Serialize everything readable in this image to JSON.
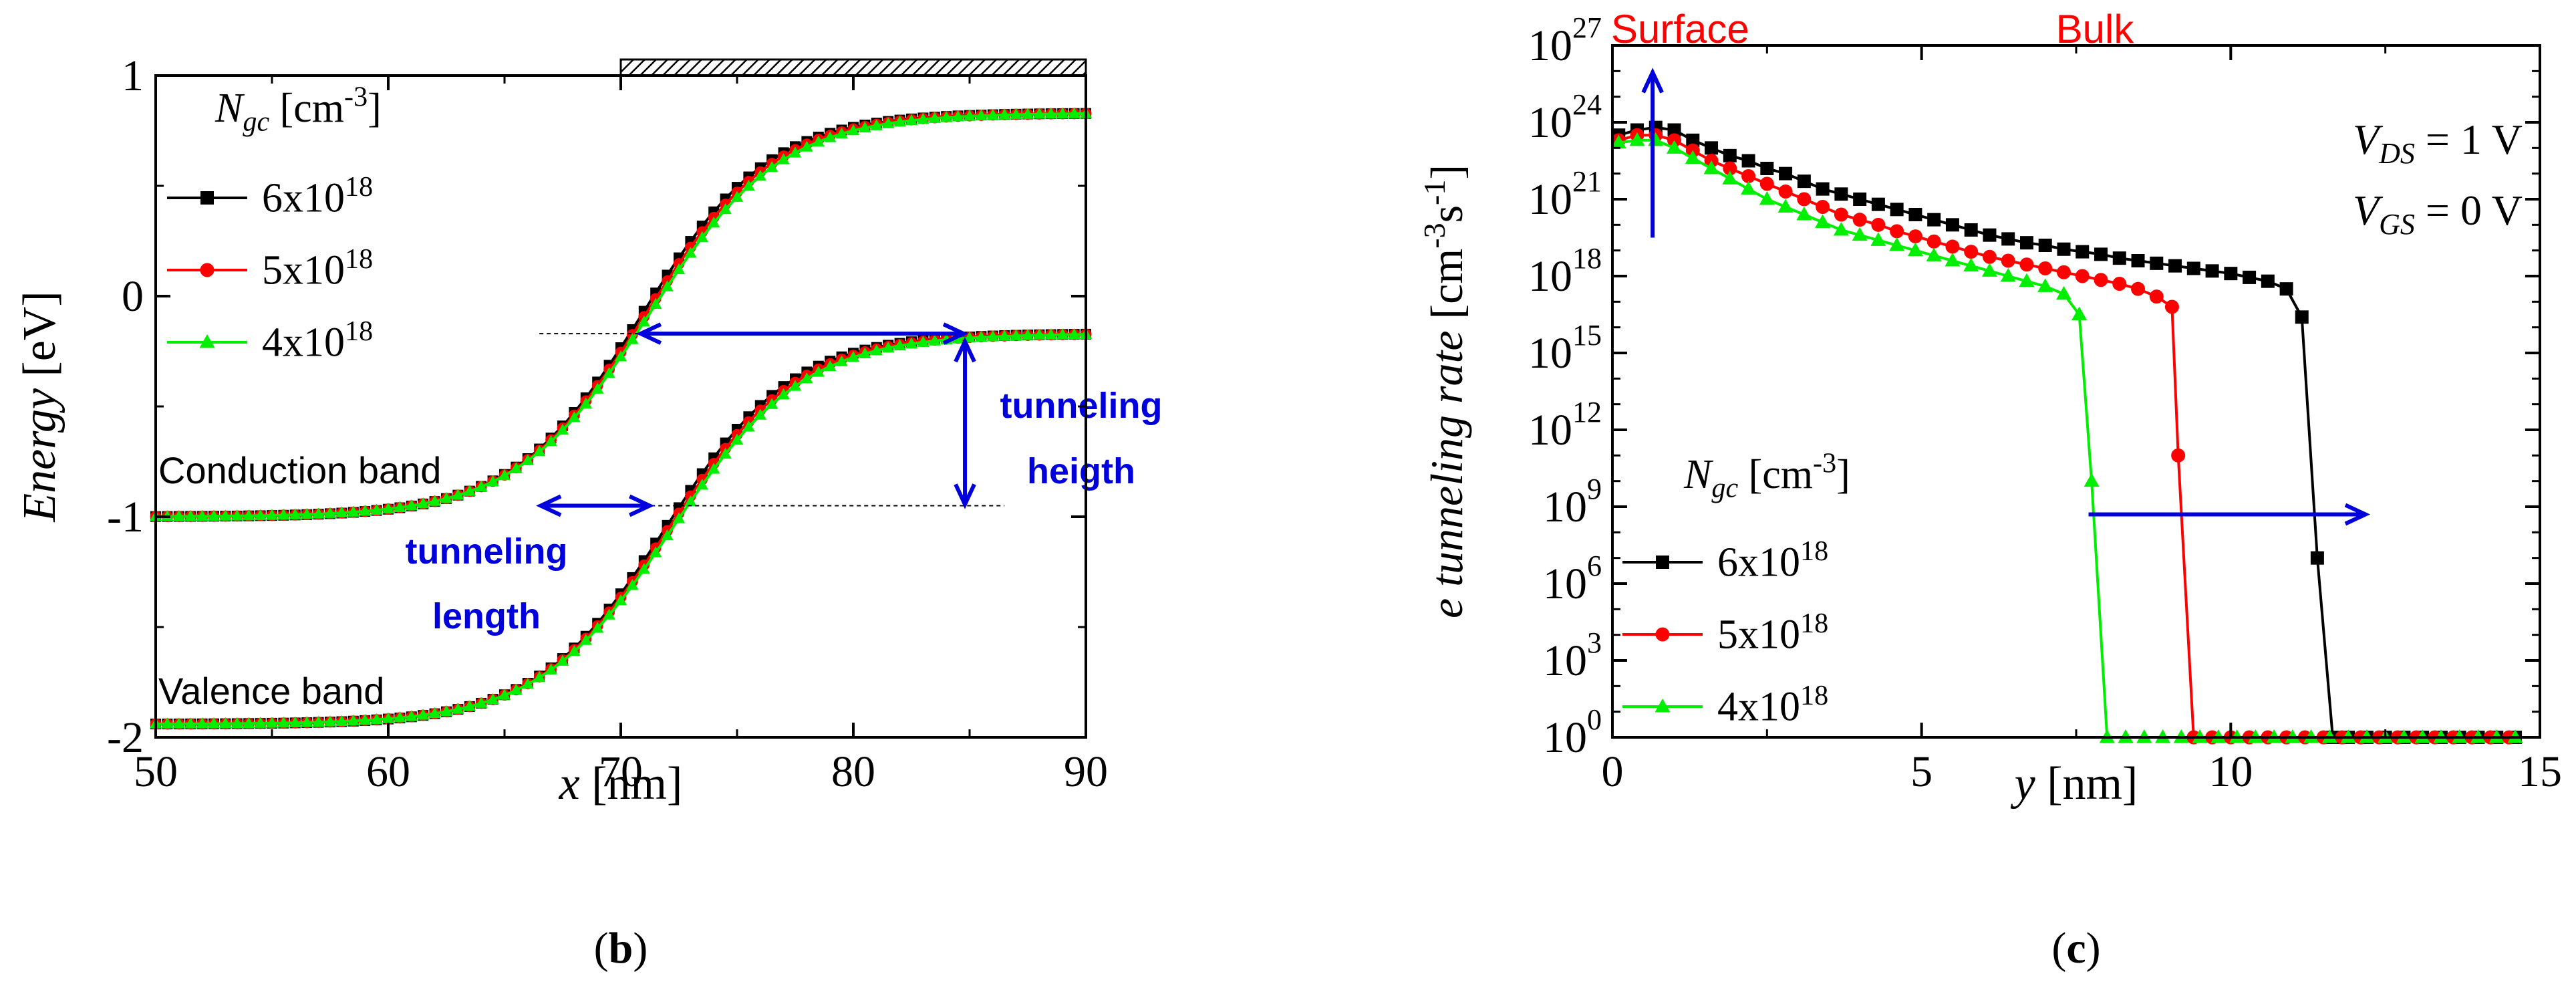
{
  "chart_data": [
    {
      "panel_label": "b",
      "type": "line",
      "title": "",
      "xlabel": {
        "var": "x",
        "unit": " [nm]"
      },
      "ylabel": {
        "var": "Energy",
        "unit": " [eV]"
      },
      "xlim": [
        50,
        90
      ],
      "ylim": [
        -2,
        1
      ],
      "x_ticks": [
        "50",
        "60",
        "70",
        "80",
        "90"
      ],
      "y_ticks": [
        "-2",
        "-1",
        "0",
        "1"
      ],
      "legend": {
        "position": "top-left",
        "title": {
          "main": "N",
          "sub": "gc",
          "unit": " [cm",
          "sup": "-3",
          "close": "]"
        },
        "entries": [
          {
            "base": "6x10",
            "exp": "18",
            "color": "#000000",
            "marker": "square"
          },
          {
            "base": "5x10",
            "exp": "18",
            "color": "#ff0000",
            "marker": "circle"
          },
          {
            "base": "4x10",
            "exp": "18",
            "color": "#00ee00",
            "marker": "triangle"
          }
        ]
      },
      "gate_bar_range": [
        70,
        90
      ],
      "series": [
        {
          "name": "6x10^18",
          "band": "Conduction band",
          "color": "#000000",
          "marker": "square",
          "low": -1.0,
          "high": 0.83,
          "center": 70.9,
          "width": 2.75
        },
        {
          "name": "5x10^18",
          "band": "Conduction band",
          "color": "#ff0000",
          "marker": "circle",
          "low": -1.0,
          "high": 0.83,
          "center": 71.05,
          "width": 2.8
        },
        {
          "name": "4x10^18",
          "band": "Conduction band",
          "color": "#00ee00",
          "marker": "triangle",
          "low": -1.0,
          "high": 0.83,
          "center": 71.2,
          "width": 2.85
        },
        {
          "name": "6x10^18",
          "band": "Valence band",
          "color": "#000000",
          "marker": "square",
          "low": -1.94,
          "high": -0.17,
          "center": 71.9,
          "width": 2.75
        },
        {
          "name": "5x10^18",
          "band": "Valence band",
          "color": "#ff0000",
          "marker": "circle",
          "low": -1.94,
          "high": -0.17,
          "center": 72.05,
          "width": 2.8
        },
        {
          "name": "4x10^18",
          "band": "Valence band",
          "color": "#00ee00",
          "marker": "triangle",
          "low": -1.94,
          "high": -0.17,
          "center": 72.2,
          "width": 2.85
        }
      ],
      "annotations": {
        "conduction_band": "Conduction band",
        "valence_band": "Valence band",
        "tunneling_length": [
          "tunneling",
          "length"
        ],
        "tunneling_height": [
          "tunneling",
          "heigth"
        ],
        "horizontal_arrow_energy": -0.17,
        "horizontal_arrow_x": [
          70.8,
          84.8
        ],
        "length_arrow_energy": -0.95,
        "length_arrow_x": [
          66.5,
          71.3
        ],
        "height_arrow_x": 84.8,
        "height_arrow_energy": [
          -0.2,
          -0.95
        ],
        "dashed_upper": {
          "x": [
            66.5,
            70.8
          ],
          "y": -0.17
        },
        "dashed_lower": {
          "x": [
            71.3,
            86.5
          ],
          "y": -0.95
        },
        "annotation_color": "#0000dd"
      }
    },
    {
      "panel_label": "c",
      "type": "line",
      "title": "",
      "xlabel": {
        "var": "y",
        "unit": " [nm]"
      },
      "ylabel": {
        "var": "e tunneling rate",
        "unit": " [cm",
        "sup1": "-3",
        "mid": "s",
        "sup2": "-1",
        "close": "]"
      },
      "xlim": [
        0,
        15
      ],
      "ylim_log10": [
        0,
        27
      ],
      "x_ticks": [
        "0",
        "5",
        "10",
        "15"
      ],
      "y_ticks": [
        {
          "base": "10",
          "exp": "0"
        },
        {
          "base": "10",
          "exp": "3"
        },
        {
          "base": "10",
          "exp": "6"
        },
        {
          "base": "10",
          "exp": "9"
        },
        {
          "base": "10",
          "exp": "12"
        },
        {
          "base": "10",
          "exp": "15"
        },
        {
          "base": "10",
          "exp": "18"
        },
        {
          "base": "10",
          "exp": "21"
        },
        {
          "base": "10",
          "exp": "24"
        },
        {
          "base": "10",
          "exp": "27"
        }
      ],
      "region_labels": {
        "surface": "Surface",
        "bulk": "Bulk",
        "color": "#ff0000"
      },
      "bias_labels": [
        {
          "var": "V",
          "sub": "DS",
          "value": " = 1 V"
        },
        {
          "var": "V",
          "sub": "GS",
          "value": " = 0 V"
        }
      ],
      "legend": {
        "position": "bottom-left",
        "title": {
          "main": "N",
          "sub": "gc",
          "unit": " [cm",
          "sup": "-3",
          "close": "]"
        },
        "entries": [
          {
            "base": "6x10",
            "exp": "18",
            "color": "#000000",
            "marker": "square"
          },
          {
            "base": "5x10",
            "exp": "18",
            "color": "#ff0000",
            "marker": "circle"
          },
          {
            "base": "4x10",
            "exp": "18",
            "color": "#00ee00",
            "marker": "triangle"
          }
        ]
      },
      "series": [
        {
          "name": "6x10^18",
          "color": "#000000",
          "marker": "square",
          "x": [
            0.1,
            0.4,
            0.7,
            1.0,
            1.3,
            1.6,
            1.9,
            2.2,
            2.5,
            2.8,
            3.1,
            3.4,
            3.7,
            4.0,
            4.3,
            4.6,
            4.9,
            5.2,
            5.5,
            5.8,
            6.1,
            6.4,
            6.7,
            7.0,
            7.3,
            7.6,
            7.9,
            8.2,
            8.5,
            8.8,
            9.1,
            9.4,
            9.7,
            10.0,
            10.3,
            10.6,
            10.9,
            11.15,
            11.4,
            11.65,
            11.9,
            12.2,
            12.5,
            12.8,
            13.1,
            13.4,
            13.7,
            14.0,
            14.3,
            14.6
          ],
          "log10": [
            23.5,
            23.7,
            23.8,
            23.7,
            23.3,
            23.0,
            22.7,
            22.5,
            22.2,
            22.0,
            21.7,
            21.4,
            21.2,
            21.0,
            20.8,
            20.6,
            20.4,
            20.2,
            20.0,
            19.8,
            19.6,
            19.45,
            19.3,
            19.2,
            19.05,
            18.95,
            18.85,
            18.7,
            18.6,
            18.5,
            18.4,
            18.3,
            18.2,
            18.1,
            17.95,
            17.8,
            17.5,
            16.4,
            7.0,
            0,
            0,
            0,
            0,
            0,
            0,
            0,
            0,
            0,
            0,
            0
          ]
        },
        {
          "name": "5x10^18",
          "color": "#ff0000",
          "marker": "circle",
          "x": [
            0.1,
            0.4,
            0.7,
            1.0,
            1.3,
            1.6,
            1.9,
            2.2,
            2.5,
            2.8,
            3.1,
            3.4,
            3.7,
            4.0,
            4.3,
            4.6,
            4.9,
            5.2,
            5.5,
            5.8,
            6.1,
            6.4,
            6.7,
            7.0,
            7.3,
            7.6,
            7.9,
            8.2,
            8.5,
            8.8,
            9.05,
            9.15,
            9.4,
            9.7,
            10.0,
            10.3,
            10.6,
            10.9,
            11.2,
            11.5,
            11.8,
            12.1,
            12.4,
            12.7,
            13.0,
            13.3,
            13.6,
            13.9,
            14.2,
            14.5
          ],
          "log10": [
            23.3,
            23.5,
            23.5,
            23.3,
            22.9,
            22.5,
            22.2,
            21.9,
            21.6,
            21.3,
            21.0,
            20.7,
            20.4,
            20.2,
            20.0,
            19.75,
            19.55,
            19.35,
            19.15,
            18.95,
            18.75,
            18.6,
            18.45,
            18.3,
            18.15,
            18.0,
            17.85,
            17.7,
            17.5,
            17.2,
            16.8,
            11.0,
            0,
            0,
            0,
            0,
            0,
            0,
            0,
            0,
            0,
            0,
            0,
            0,
            0,
            0,
            0,
            0,
            0,
            0
          ]
        },
        {
          "name": "4x10^18",
          "color": "#00ee00",
          "marker": "triangle",
          "x": [
            0.1,
            0.4,
            0.7,
            1.0,
            1.3,
            1.6,
            1.9,
            2.2,
            2.5,
            2.8,
            3.1,
            3.4,
            3.7,
            4.0,
            4.3,
            4.6,
            4.9,
            5.2,
            5.5,
            5.8,
            6.1,
            6.4,
            6.7,
            7.0,
            7.3,
            7.55,
            7.75,
            8.0,
            8.3,
            8.6,
            8.9,
            9.2,
            9.5,
            9.8,
            10.1,
            10.4,
            10.7,
            11.0,
            11.3,
            11.6,
            11.9,
            12.2,
            12.5,
            12.8,
            13.1,
            13.4,
            13.7,
            14.0,
            14.3,
            14.6
          ],
          "log10": [
            23.2,
            23.3,
            23.3,
            23.0,
            22.6,
            22.2,
            21.8,
            21.4,
            21.0,
            20.7,
            20.4,
            20.1,
            19.8,
            19.6,
            19.4,
            19.2,
            19.0,
            18.8,
            18.6,
            18.4,
            18.2,
            18.0,
            17.8,
            17.6,
            17.3,
            16.5,
            10.0,
            0,
            0,
            0,
            0,
            0,
            0,
            0,
            0,
            0,
            0,
            0,
            0,
            0,
            0,
            0,
            0,
            0,
            0,
            0,
            0,
            0,
            0,
            0
          ]
        }
      ],
      "annotations": {
        "up_arrow": {
          "x": 0.65,
          "log10": [
            19.5,
            26.0
          ]
        },
        "right_arrow": {
          "log10": 8.7,
          "x": [
            7.7,
            12.2
          ]
        },
        "annotation_color": "#0000dd"
      }
    }
  ]
}
